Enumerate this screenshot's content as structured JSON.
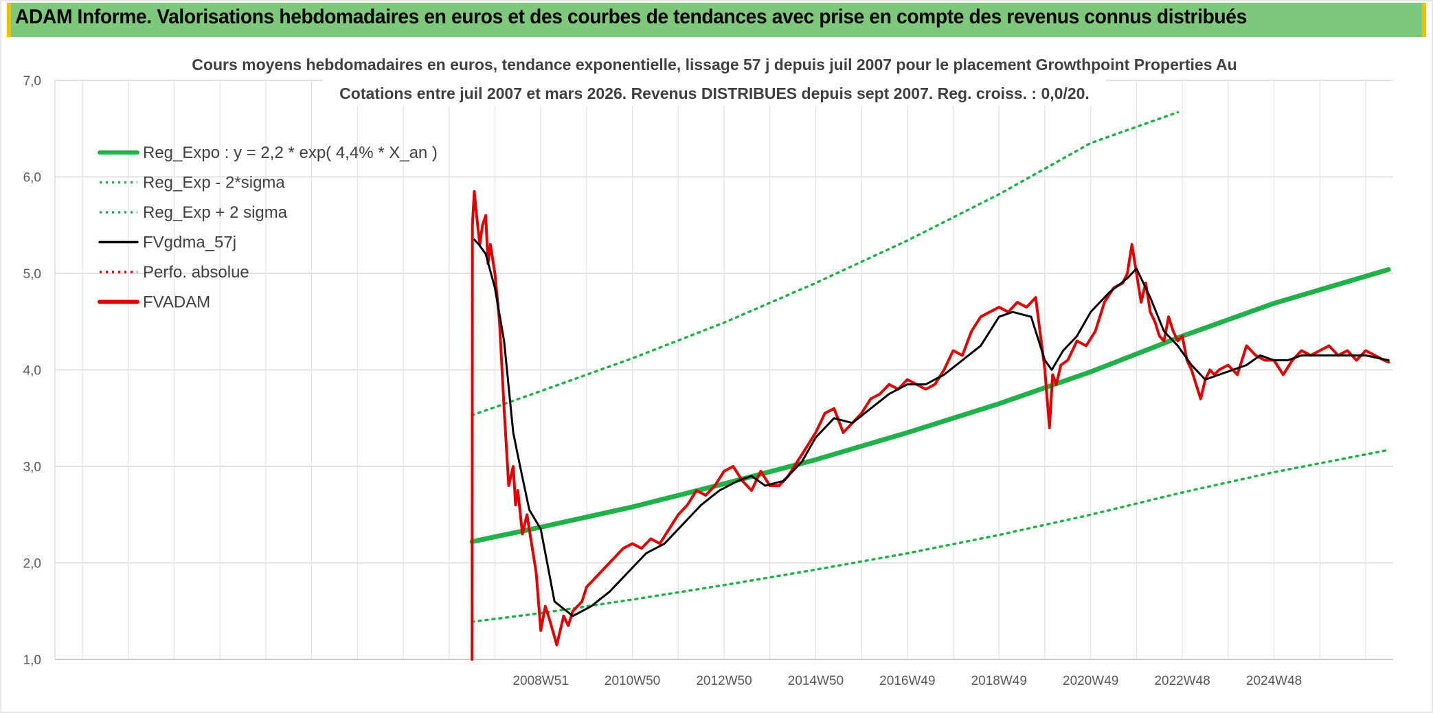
{
  "header": {
    "title": "ADAM Informe. Valorisations hebdomadaires en euros et des courbes de tendances avec prise en compte des revenus connus distribués"
  },
  "chart_data": {
    "type": "line",
    "title_line1": "Cours moyens hebdomadaires en euros, tendance exponentielle, lissage 57 j depuis juil 2007 pour le placement Growthpoint Properties Au",
    "title_line2": "Cotations entre juil 2007 et mars 2026. Revenus DISTRIBUES depuis sept 2007. Reg. croiss. : 0,0/20.",
    "ylim": [
      1.0,
      7.0
    ],
    "xlim": [
      1998.4,
      2027.6
    ],
    "y_ticks": [
      "1,0",
      "2,0",
      "3,0",
      "4,0",
      "5,0",
      "6,0",
      "7,0"
    ],
    "y_tick_values": [
      1,
      2,
      3,
      4,
      5,
      6,
      7
    ],
    "x_ticks": [
      "2008W51",
      "2010W50",
      "2012W50",
      "2014W50",
      "2016W49",
      "2018W49",
      "2020W49",
      "2022W48",
      "2024W48"
    ],
    "x_tick_values": [
      2009.0,
      2011.0,
      2013.0,
      2015.0,
      2017.0,
      2019.0,
      2021.0,
      2023.0,
      2025.0
    ],
    "grid": true,
    "legend_position": "top-left",
    "legend": [
      {
        "label": "Reg_Expo : y = 2,2 * exp( 4,4% *  X_an )",
        "color": "#22b04b",
        "style": "solid-thick"
      },
      {
        "label": "Reg_Exp - 2*sigma",
        "color": "#22b04b",
        "style": "dotted"
      },
      {
        "label": "Reg_Exp + 2 sigma",
        "color": "#22b04b",
        "style": "dotted"
      },
      {
        "label": "FVgdma_57j",
        "color": "#000000",
        "style": "solid"
      },
      {
        "label": "Perfo. absolue",
        "color": "#e00000",
        "style": "dotted"
      },
      {
        "label": "FVADAM",
        "color": "#e00000",
        "style": "solid-thick"
      }
    ],
    "series": [
      {
        "name": "Reg_Expo : y = 2,2 * exp( 4,4% *  X_an )",
        "color": "#22b04b",
        "x": [
          2007.5,
          2009,
          2011,
          2013,
          2015,
          2017,
          2019,
          2021,
          2023,
          2025,
          2027.5
        ],
        "y": [
          2.22,
          2.37,
          2.58,
          2.82,
          3.07,
          3.35,
          3.65,
          3.98,
          4.35,
          4.69,
          5.04
        ]
      },
      {
        "name": "Reg_Exp - 2*sigma",
        "color": "#22b04b",
        "x": [
          2007.5,
          2009,
          2011,
          2013,
          2015,
          2017,
          2019,
          2021,
          2023,
          2025,
          2027.5
        ],
        "y": [
          1.39,
          1.48,
          1.62,
          1.77,
          1.93,
          2.1,
          2.29,
          2.5,
          2.73,
          2.94,
          3.17
        ]
      },
      {
        "name": "Reg_Exp + 2 sigma",
        "color": "#22b04b",
        "x": [
          2007.5,
          2009,
          2011,
          2013,
          2015,
          2017,
          2019,
          2021,
          2022.9
        ],
        "y": [
          3.53,
          3.78,
          4.12,
          4.49,
          4.9,
          5.34,
          5.82,
          6.35,
          6.67
        ]
      },
      {
        "name": "FVgdma_57j",
        "color": "#000000",
        "x": [
          2007.55,
          2007.65,
          2007.8,
          2008.0,
          2008.2,
          2008.4,
          2008.55,
          2008.75,
          2009.0,
          2009.3,
          2009.7,
          2010.1,
          2010.5,
          2010.9,
          2011.3,
          2011.7,
          2012.1,
          2012.5,
          2012.9,
          2013.3,
          2013.6,
          2013.9,
          2014.3,
          2014.7,
          2015.0,
          2015.4,
          2015.8,
          2016.2,
          2016.6,
          2017.0,
          2017.4,
          2017.8,
          2018.2,
          2018.6,
          2019.0,
          2019.3,
          2019.7,
          2020.0,
          2020.15,
          2020.4,
          2020.7,
          2021.0,
          2021.4,
          2021.8,
          2022.0,
          2022.3,
          2022.6,
          2022.9,
          2023.2,
          2023.5,
          2023.8,
          2024.1,
          2024.4,
          2024.7,
          2025.0,
          2025.3,
          2025.6,
          2025.9,
          2026.2,
          2026.6,
          2027.0,
          2027.5
        ],
        "y": [
          5.35,
          5.3,
          5.2,
          4.85,
          4.3,
          3.35,
          3.0,
          2.55,
          2.35,
          1.6,
          1.45,
          1.55,
          1.7,
          1.9,
          2.1,
          2.2,
          2.4,
          2.6,
          2.75,
          2.85,
          2.9,
          2.8,
          2.85,
          3.05,
          3.3,
          3.5,
          3.45,
          3.6,
          3.75,
          3.85,
          3.85,
          3.95,
          4.1,
          4.25,
          4.55,
          4.6,
          4.55,
          4.1,
          4.0,
          4.2,
          4.35,
          4.6,
          4.8,
          4.95,
          5.05,
          4.75,
          4.4,
          4.25,
          4.05,
          3.9,
          3.95,
          4.0,
          4.05,
          4.15,
          4.1,
          4.1,
          4.15,
          4.15,
          4.15,
          4.15,
          4.15,
          4.1
        ]
      },
      {
        "name": "FVADAM",
        "color": "#e00000",
        "x": [
          2007.5,
          2007.51,
          2007.55,
          2007.6,
          2007.67,
          2007.73,
          2007.8,
          2007.85,
          2007.9,
          2008.0,
          2008.1,
          2008.2,
          2008.3,
          2008.4,
          2008.45,
          2008.5,
          2008.6,
          2008.7,
          2008.8,
          2008.9,
          2009.0,
          2009.1,
          2009.2,
          2009.35,
          2009.5,
          2009.6,
          2009.7,
          2009.8,
          2009.9,
          2010.0,
          2010.2,
          2010.4,
          2010.6,
          2010.8,
          2011.0,
          2011.2,
          2011.4,
          2011.6,
          2011.8,
          2012.0,
          2012.2,
          2012.4,
          2012.6,
          2012.8,
          2013.0,
          2013.2,
          2013.4,
          2013.6,
          2013.8,
          2014.0,
          2014.2,
          2014.4,
          2014.6,
          2014.8,
          2015.0,
          2015.2,
          2015.4,
          2015.6,
          2015.8,
          2016.0,
          2016.2,
          2016.4,
          2016.6,
          2016.8,
          2017.0,
          2017.2,
          2017.4,
          2017.6,
          2017.8,
          2018.0,
          2018.2,
          2018.4,
          2018.6,
          2018.8,
          2019.0,
          2019.2,
          2019.4,
          2019.6,
          2019.8,
          2020.0,
          2020.1,
          2020.17,
          2020.25,
          2020.35,
          2020.5,
          2020.7,
          2020.9,
          2021.1,
          2021.3,
          2021.5,
          2021.7,
          2021.8,
          2021.9,
          2022.0,
          2022.1,
          2022.2,
          2022.3,
          2022.4,
          2022.5,
          2022.6,
          2022.7,
          2022.8,
          2022.9,
          2023.0,
          2023.1,
          2023.2,
          2023.3,
          2023.4,
          2023.5,
          2023.6,
          2023.7,
          2023.8,
          2024.0,
          2024.2,
          2024.4,
          2024.6,
          2024.8,
          2025.0,
          2025.2,
          2025.4,
          2025.6,
          2025.8,
          2026.0,
          2026.2,
          2026.4,
          2026.6,
          2026.8,
          2027.0,
          2027.2,
          2027.4,
          2027.5
        ],
        "y": [
          1.0,
          5.5,
          5.85,
          5.6,
          5.3,
          5.5,
          5.6,
          5.1,
          5.3,
          5.0,
          4.5,
          3.6,
          2.8,
          3.0,
          2.6,
          2.75,
          2.3,
          2.5,
          2.2,
          1.9,
          1.3,
          1.55,
          1.4,
          1.15,
          1.45,
          1.35,
          1.5,
          1.55,
          1.6,
          1.75,
          1.85,
          1.95,
          2.05,
          2.15,
          2.2,
          2.15,
          2.25,
          2.2,
          2.35,
          2.5,
          2.6,
          2.75,
          2.7,
          2.8,
          2.95,
          3.0,
          2.85,
          2.75,
          2.95,
          2.8,
          2.8,
          2.9,
          3.05,
          3.2,
          3.35,
          3.55,
          3.6,
          3.35,
          3.45,
          3.55,
          3.7,
          3.75,
          3.85,
          3.8,
          3.9,
          3.85,
          3.8,
          3.85,
          4.0,
          4.2,
          4.15,
          4.4,
          4.55,
          4.6,
          4.65,
          4.6,
          4.7,
          4.65,
          4.75,
          4.0,
          3.4,
          3.95,
          3.85,
          4.05,
          4.1,
          4.3,
          4.25,
          4.4,
          4.7,
          4.85,
          4.9,
          5.0,
          5.3,
          5.0,
          4.7,
          4.9,
          4.6,
          4.5,
          4.35,
          4.3,
          4.55,
          4.4,
          4.3,
          4.35,
          4.1,
          4.0,
          3.85,
          3.7,
          3.9,
          4.0,
          3.95,
          4.0,
          4.05,
          3.95,
          4.25,
          4.15,
          4.1,
          4.1,
          3.95,
          4.1,
          4.2,
          4.15,
          4.2,
          4.25,
          4.15,
          4.2,
          4.1,
          4.2,
          4.15,
          4.1,
          4.08
        ]
      }
    ]
  }
}
